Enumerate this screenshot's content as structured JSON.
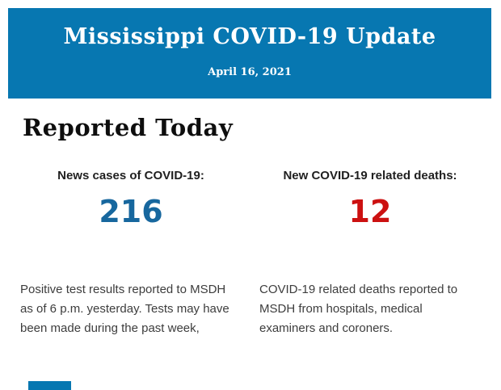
{
  "page": {
    "background_color": "#ffffff"
  },
  "header": {
    "title": "Mississippi COVID-19 Update",
    "date": "April 16, 2021",
    "background_color": "#0777b1",
    "text_color": "#ffffff"
  },
  "section": {
    "heading": "Reported Today"
  },
  "stats": {
    "cases": {
      "label": "News cases of COVID-19:",
      "value": "216",
      "value_color": "#17679e",
      "description": "Positive test results reported to MSDH as of 6 p.m. yesterday. Tests may have been made during the past week,"
    },
    "deaths": {
      "label": "New COVID-19 related deaths:",
      "value": "12",
      "value_color": "#cc1111",
      "description": "COVID-19 related deaths reported to MSDH from hospitals, medical examiners and coroners."
    }
  },
  "footer": {
    "cutoff_element_color": "#0777b1"
  }
}
